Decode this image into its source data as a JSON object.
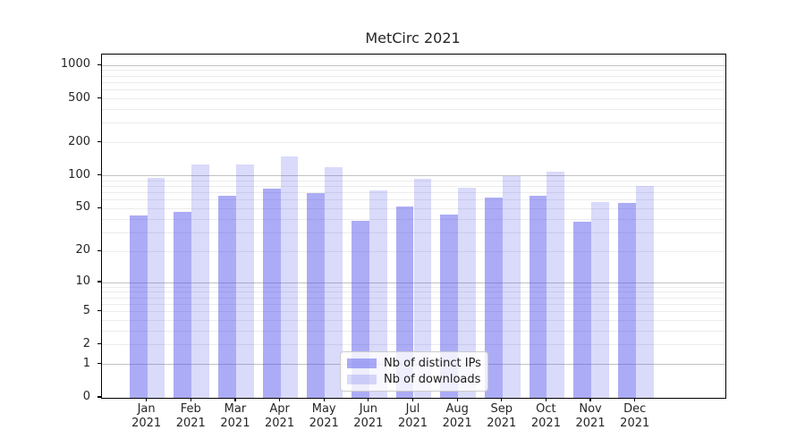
{
  "figure": {
    "title": "MetCirc 2021",
    "background": "#ffffff"
  },
  "legend": {
    "items": [
      {
        "label": "Nb of distinct IPs",
        "series_key": "distinct_ips"
      },
      {
        "label": "Nb of downloads",
        "series_key": "downloads"
      }
    ]
  },
  "colors": {
    "distinct_ips": "rgba(70,70,235,0.45)",
    "downloads": "rgba(70,70,235,0.20)",
    "grid_major": "#c2c2c2",
    "grid_minor": "#ececec",
    "spine": "#000000",
    "text": "#262626"
  },
  "chart_data": {
    "type": "bar",
    "title": "MetCirc 2021",
    "categories": [
      "Jan 2021",
      "Feb 2021",
      "Mar 2021",
      "Apr 2021",
      "May 2021",
      "Jun 2021",
      "Jul 2021",
      "Aug 2021",
      "Sep 2021",
      "Oct 2021",
      "Nov 2021",
      "Dec 2021"
    ],
    "x_tick_line1": [
      "Jan",
      "Feb",
      "Mar",
      "Apr",
      "May",
      "Jun",
      "Jul",
      "Aug",
      "Sep",
      "Oct",
      "Nov",
      "Dec"
    ],
    "x_tick_line2": "2021",
    "series": [
      {
        "name": "Nb of distinct IPs",
        "values": [
          43,
          47,
          66,
          77,
          70,
          39,
          52,
          44,
          63,
          66,
          38,
          57
        ]
      },
      {
        "name": "Nb of downloads",
        "values": [
          96,
          126,
          126,
          149,
          120,
          74,
          94,
          78,
          100,
          110,
          58,
          81
        ]
      }
    ],
    "ylabel": "",
    "xlabel": "",
    "yscale": "log1p",
    "y_ticks": [
      0,
      1,
      2,
      5,
      10,
      20,
      50,
      100,
      200,
      500,
      1000
    ],
    "ylim": [
      0,
      1258
    ],
    "grid": "horizontal major+minor",
    "legend_position": "inside lower-center"
  }
}
